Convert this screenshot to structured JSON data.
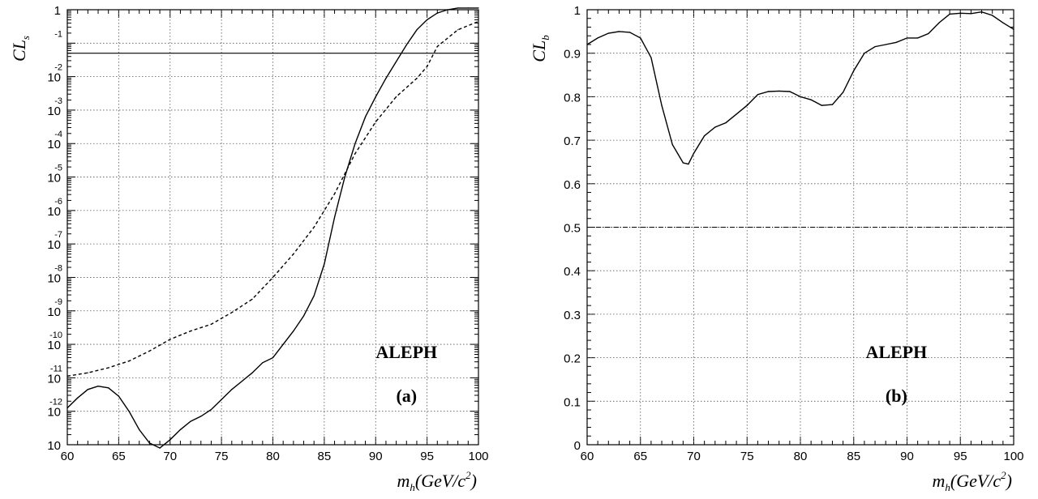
{
  "chart_data": [
    {
      "type": "line",
      "panel_label": "(a)",
      "experiment": "ALEPH",
      "ylabel": "CL",
      "ylabel_sub": "s",
      "xlabel": "m",
      "xlabel_sub": "h",
      "xlabel_unit": "(GeV/c",
      "xlabel_unit_sup": "2",
      "xlabel_close": ")",
      "yscale": "log",
      "xlim": [
        60,
        100
      ],
      "ylim_exp": [
        -13,
        0
      ],
      "x_ticks": [
        "60",
        "65",
        "70",
        "75",
        "80",
        "85",
        "90",
        "95",
        "100"
      ],
      "y_ticks": [
        {
          "exp": 0,
          "base": "1",
          "sup": ""
        },
        {
          "exp": -1,
          "base": "",
          "sup": "-1"
        },
        {
          "exp": -2,
          "base": "10",
          "sup": "-2"
        },
        {
          "exp": -3,
          "base": "10",
          "sup": "-3"
        },
        {
          "exp": -4,
          "base": "10",
          "sup": "-4"
        },
        {
          "exp": -5,
          "base": "10",
          "sup": "-5"
        },
        {
          "exp": -6,
          "base": "10",
          "sup": "-6"
        },
        {
          "exp": -7,
          "base": "10",
          "sup": "-7"
        },
        {
          "exp": -8,
          "base": "10",
          "sup": "-8"
        },
        {
          "exp": -9,
          "base": "10",
          "sup": "-9"
        },
        {
          "exp": -10,
          "base": "10",
          "sup": "-10"
        },
        {
          "exp": -11,
          "base": "10",
          "sup": "-11"
        },
        {
          "exp": -12,
          "base": "10",
          "sup": "-12"
        },
        {
          "exp": -13,
          "base": "10",
          "sup": ""
        }
      ],
      "grid": true,
      "hline_log10": -1.3,
      "series": [
        {
          "style": "solid",
          "points": [
            [
              60,
              -11.9
            ],
            [
              61,
              -11.6
            ],
            [
              62,
              -11.35
            ],
            [
              63,
              -11.25
            ],
            [
              64,
              -11.3
            ],
            [
              65,
              -11.55
            ],
            [
              66,
              -12.0
            ],
            [
              67,
              -12.55
            ],
            [
              68,
              -12.95
            ],
            [
              69,
              -13.1
            ],
            [
              70,
              -12.85
            ],
            [
              71,
              -12.55
            ],
            [
              72,
              -12.3
            ],
            [
              73,
              -12.15
            ],
            [
              74,
              -11.95
            ],
            [
              75,
              -11.65
            ],
            [
              76,
              -11.35
            ],
            [
              77,
              -11.1
            ],
            [
              78,
              -10.85
            ],
            [
              79,
              -10.55
            ],
            [
              80,
              -10.4
            ],
            [
              81,
              -10.0
            ],
            [
              82,
              -9.6
            ],
            [
              83,
              -9.15
            ],
            [
              84,
              -8.55
            ],
            [
              85,
              -7.6
            ],
            [
              86,
              -6.2
            ],
            [
              87,
              -5.0
            ],
            [
              88,
              -4.0
            ],
            [
              89,
              -3.2
            ],
            [
              90,
              -2.6
            ],
            [
              91,
              -2.05
            ],
            [
              92,
              -1.55
            ],
            [
              93,
              -1.05
            ],
            [
              94,
              -0.6
            ],
            [
              95,
              -0.3
            ],
            [
              96,
              -0.1
            ],
            [
              97,
              0.0
            ],
            [
              98,
              0.05
            ],
            [
              99,
              0.05
            ],
            [
              100,
              0.05
            ]
          ]
        },
        {
          "style": "dashed",
          "points": [
            [
              60,
              -10.95
            ],
            [
              62,
              -10.85
            ],
            [
              64,
              -10.7
            ],
            [
              66,
              -10.5
            ],
            [
              68,
              -10.2
            ],
            [
              70,
              -9.85
            ],
            [
              72,
              -9.6
            ],
            [
              74,
              -9.4
            ],
            [
              76,
              -9.05
            ],
            [
              78,
              -8.65
            ],
            [
              80,
              -8.0
            ],
            [
              82,
              -7.3
            ],
            [
              84,
              -6.5
            ],
            [
              86,
              -5.5
            ],
            [
              88,
              -4.3
            ],
            [
              90,
              -3.35
            ],
            [
              92,
              -2.6
            ],
            [
              94,
              -2.05
            ],
            [
              95,
              -1.7
            ],
            [
              96,
              -1.1
            ],
            [
              98,
              -0.6
            ],
            [
              100,
              -0.35
            ]
          ]
        }
      ]
    },
    {
      "type": "line",
      "panel_label": "(b)",
      "experiment": "ALEPH",
      "ylabel": "CL",
      "ylabel_sub": "b",
      "xlabel": "m",
      "xlabel_sub": "h",
      "xlabel_unit": "(GeV/c",
      "xlabel_unit_sup": "2",
      "xlabel_close": ")",
      "yscale": "linear",
      "xlim": [
        60,
        100
      ],
      "ylim": [
        0,
        1
      ],
      "x_ticks": [
        "60",
        "65",
        "70",
        "75",
        "80",
        "85",
        "90",
        "95",
        "100"
      ],
      "y_ticks": [
        "0",
        "0.1",
        "0.2",
        "0.3",
        "0.4",
        "0.5",
        "0.6",
        "0.7",
        "0.8",
        "0.9",
        "1"
      ],
      "grid": true,
      "hline": 0.5,
      "series": [
        {
          "style": "solid",
          "points": [
            [
              60,
              0.92
            ],
            [
              61,
              0.935
            ],
            [
              62,
              0.946
            ],
            [
              63,
              0.95
            ],
            [
              64,
              0.948
            ],
            [
              65,
              0.935
            ],
            [
              66,
              0.89
            ],
            [
              67,
              0.78
            ],
            [
              68,
              0.69
            ],
            [
              69,
              0.648
            ],
            [
              69.5,
              0.645
            ],
            [
              70,
              0.67
            ],
            [
              71,
              0.71
            ],
            [
              72,
              0.73
            ],
            [
              73,
              0.74
            ],
            [
              74,
              0.76
            ],
            [
              75,
              0.78
            ],
            [
              76,
              0.805
            ],
            [
              77,
              0.812
            ],
            [
              78,
              0.813
            ],
            [
              79,
              0.812
            ],
            [
              80,
              0.8
            ],
            [
              81,
              0.793
            ],
            [
              82,
              0.78
            ],
            [
              83,
              0.782
            ],
            [
              84,
              0.81
            ],
            [
              85,
              0.86
            ],
            [
              86,
              0.9
            ],
            [
              87,
              0.915
            ],
            [
              88,
              0.92
            ],
            [
              89,
              0.925
            ],
            [
              90,
              0.935
            ],
            [
              91,
              0.935
            ],
            [
              92,
              0.945
            ],
            [
              93,
              0.97
            ],
            [
              94,
              0.99
            ],
            [
              95,
              0.992
            ],
            [
              96,
              0.991
            ],
            [
              97,
              0.995
            ],
            [
              98,
              0.987
            ],
            [
              99,
              0.97
            ],
            [
              100,
              0.955
            ]
          ]
        }
      ]
    }
  ]
}
